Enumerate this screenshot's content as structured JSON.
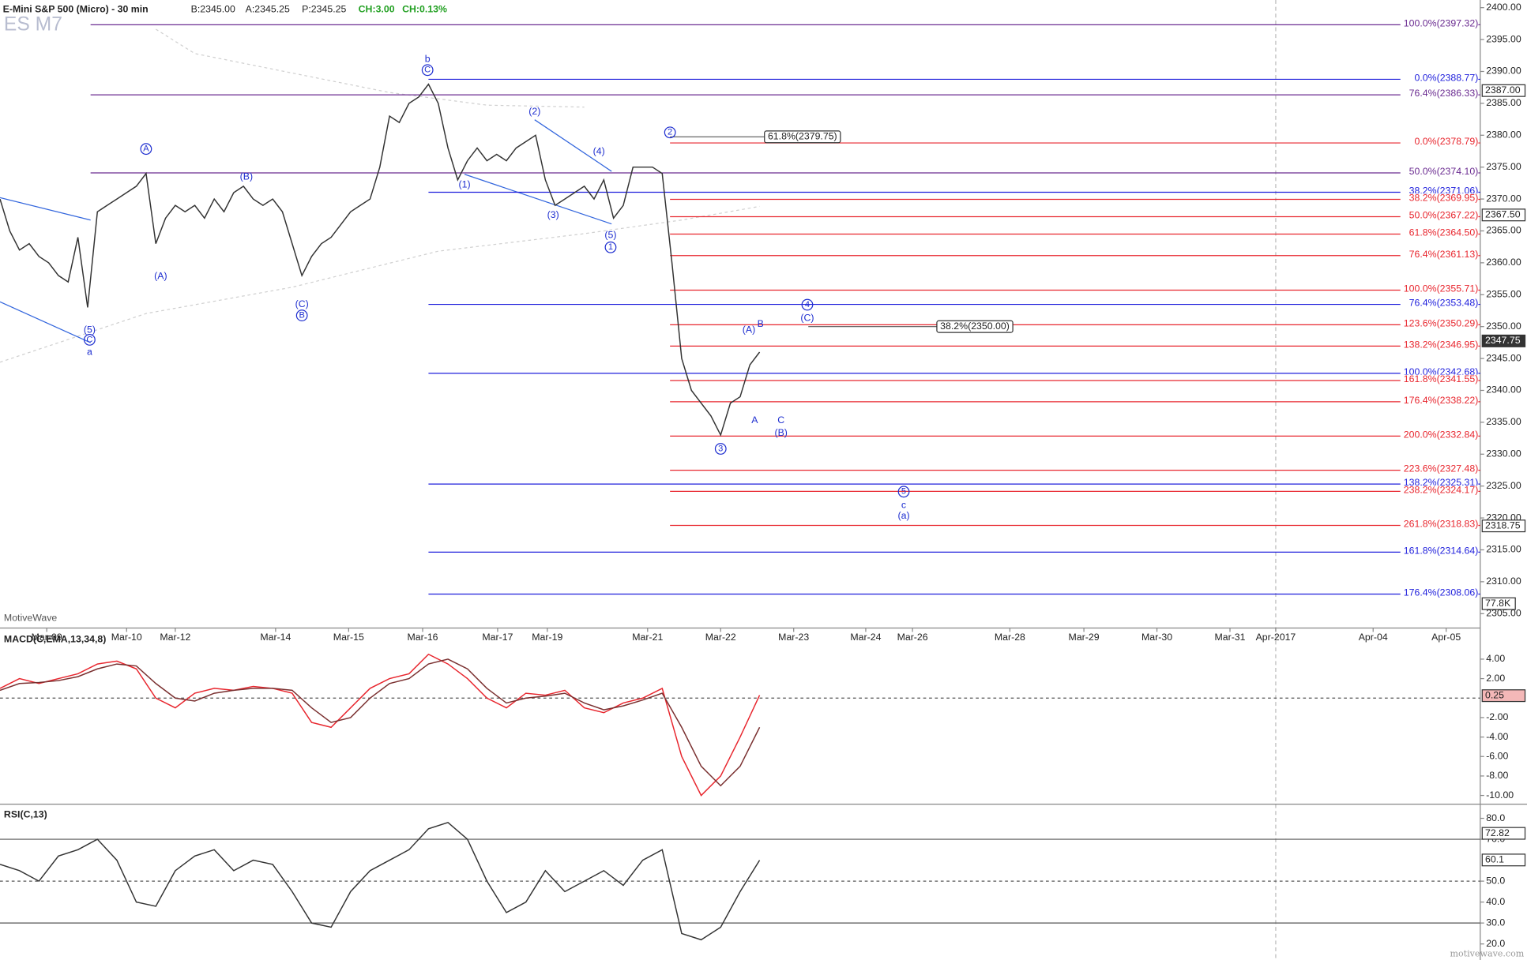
{
  "header": {
    "title": "E-Mini S&P 500 (Micro) - 30 min",
    "bid": "B:2345.00",
    "ask": "A:2345.25",
    "price": "P:2345.25",
    "change": "CH:3.00",
    "change_pct": "CH:0.13%",
    "symbol": "ES M7",
    "brand": "MotiveWave",
    "watermark": "motivewave.com"
  },
  "chart_data": [
    {
      "type": "line",
      "title": "E-Mini S&P 500 (Micro) - 30 min",
      "ylim": [
        2302.75,
        2401.2
      ],
      "yticks": [
        {
          "value": 2305,
          "label": "2305.00"
        },
        {
          "value": 2310,
          "label": "2310.00"
        },
        {
          "value": 2315,
          "label": "2315.00"
        },
        {
          "value": 2320,
          "label": "2320.00"
        },
        {
          "value": 2325,
          "label": "2325.00"
        },
        {
          "value": 2330,
          "label": "2330.00"
        },
        {
          "value": 2335,
          "label": "2335.00"
        },
        {
          "value": 2340,
          "label": "2340.00"
        },
        {
          "value": 2345,
          "label": "2345.00"
        },
        {
          "value": 2350,
          "label": "2350.00"
        },
        {
          "value": 2355,
          "label": "2355.00"
        },
        {
          "value": 2360,
          "label": "2360.00"
        },
        {
          "value": 2365,
          "label": "2365.00"
        },
        {
          "value": 2370,
          "label": "2370.00"
        },
        {
          "value": 2375,
          "label": "2375.00"
        },
        {
          "value": 2380,
          "label": "2380.00"
        },
        {
          "value": 2385,
          "label": "2385.00"
        },
        {
          "value": 2390,
          "label": "2390.00"
        },
        {
          "value": 2395,
          "label": "2395.00"
        },
        {
          "value": 2400,
          "label": "2400.00"
        }
      ],
      "xtick_labels": [
        "Mar-09",
        "Mar-10",
        "Mar-12",
        "Mar-14",
        "Mar-15",
        "Mar-16",
        "Mar-17",
        "Mar-19",
        "Mar-21",
        "Mar-22",
        "Mar-23",
        "Mar-24",
        "Mar-26",
        "Mar-28",
        "Mar-29",
        "Mar-30",
        "Mar-31",
        "Apr-2017",
        "Apr-04",
        "Apr-05"
      ],
      "series": [
        {
          "name": "Price",
          "color": "#333333",
          "values": [
            2370,
            2365,
            2362,
            2363,
            2361,
            2360,
            2358,
            2357,
            2364,
            2353,
            2368,
            2369,
            2370,
            2371,
            2372,
            2374,
            2363,
            2367,
            2369,
            2368,
            2369,
            2367,
            2370,
            2368,
            2371,
            2372,
            2370,
            2369,
            2370,
            2368,
            2363,
            2358,
            2361,
            2363,
            2364,
            2366,
            2368,
            2369,
            2370,
            2375,
            2383,
            2382,
            2385,
            2386,
            2388,
            2385,
            2378,
            2373,
            2376,
            2378,
            2376,
            2377,
            2376,
            2378,
            2379,
            2380,
            2373,
            2369,
            2370,
            2371,
            2372,
            2370,
            2373,
            2367,
            2369,
            2375,
            2375,
            2375,
            2374,
            2360,
            2345,
            2340,
            2338,
            2336,
            2333,
            2338,
            2339,
            2344,
            2346
          ]
        }
      ],
      "fib_levels": [
        {
          "label": "100.0%(2397.32)",
          "value": 2397.32,
          "color": "#6b2c91"
        },
        {
          "label": "0.0%(2388.77)",
          "value": 2388.77,
          "color": "#1f1fdc"
        },
        {
          "label": "76.4%(2386.33)",
          "value": 2386.33,
          "color": "#6b2c91"
        },
        {
          "label": "0.0%(2378.79)",
          "value": 2378.79,
          "color": "#e8262e"
        },
        {
          "label": "50.0%(2374.10)",
          "value": 2374.1,
          "color": "#6b2c91"
        },
        {
          "label": "38.2%(2371.06)",
          "value": 2371.06,
          "color": "#1f1fdc"
        },
        {
          "label": "38.2%(2369.95)",
          "value": 2369.95,
          "color": "#e8262e"
        },
        {
          "label": "50.0%(2367.22)",
          "value": 2367.22,
          "color": "#e8262e"
        },
        {
          "label": "61.8%(2364.50)",
          "value": 2364.5,
          "color": "#e8262e"
        },
        {
          "label": "76.4%(2361.13)",
          "value": 2361.13,
          "color": "#e8262e"
        },
        {
          "label": "100.0%(2355.71)",
          "value": 2355.71,
          "color": "#e8262e"
        },
        {
          "label": "76.4%(2353.48)",
          "value": 2353.48,
          "color": "#1f1fdc"
        },
        {
          "label": "123.6%(2350.29)",
          "value": 2350.29,
          "color": "#e8262e"
        },
        {
          "label": "138.2%(2346.95)",
          "value": 2346.95,
          "color": "#e8262e"
        },
        {
          "label": "100.0%(2342.68)",
          "value": 2342.68,
          "color": "#1f1fdc"
        },
        {
          "label": "161.8%(2341.55)",
          "value": 2341.55,
          "color": "#e8262e"
        },
        {
          "label": "176.4%(2338.22)",
          "value": 2338.22,
          "color": "#e8262e"
        },
        {
          "label": "200.0%(2332.84)",
          "value": 2332.84,
          "color": "#e8262e"
        },
        {
          "label": "223.6%(2327.48)",
          "value": 2327.48,
          "color": "#e8262e"
        },
        {
          "label": "138.2%(2325.31)",
          "value": 2325.31,
          "color": "#1f1fdc"
        },
        {
          "label": "238.2%(2324.17)",
          "value": 2324.17,
          "color": "#e8262e"
        },
        {
          "label": "261.8%(2318.83)",
          "value": 2318.83,
          "color": "#e8262e"
        },
        {
          "label": "161.8%(2314.64)",
          "value": 2314.64,
          "color": "#1f1fdc"
        },
        {
          "label": "176.4%(2308.06)",
          "value": 2308.06,
          "color": "#1f1fdc"
        }
      ],
      "targets": [
        {
          "label": "61.8%(2379.75)",
          "value": 2379.75
        },
        {
          "label": "38.2%(2350.00)",
          "value": 2350.0
        }
      ],
      "markers": [
        {
          "label": "2387.00",
          "value": 2387.0,
          "dark": false
        },
        {
          "label": "2367.50",
          "value": 2367.5,
          "dark": false
        },
        {
          "label": "2347.75",
          "value": 2347.75,
          "dark": true
        },
        {
          "label": "2318.75",
          "value": 2318.75,
          "dark": false
        }
      ],
      "annotations": [
        {
          "text": "b",
          "circled": false
        },
        {
          "text": "C",
          "circled": true
        },
        {
          "text": "A",
          "circled": true
        },
        {
          "text": "(A)",
          "circled": false
        },
        {
          "text": "(B)",
          "circled": false
        },
        {
          "text": "(C)",
          "circled": false
        },
        {
          "text": "B",
          "circled": true
        },
        {
          "text": "(5)",
          "circled": false
        },
        {
          "text": "C",
          "circled": true
        },
        {
          "text": "a",
          "circled": false
        },
        {
          "text": "(1)",
          "circled": false
        },
        {
          "text": "(2)",
          "circled": false
        },
        {
          "text": "(3)",
          "circled": false
        },
        {
          "text": "(4)",
          "circled": false
        },
        {
          "text": "(5)",
          "circled": false
        },
        {
          "text": "1",
          "circled": true
        },
        {
          "text": "2",
          "circled": true
        },
        {
          "text": "3",
          "circled": true
        },
        {
          "text": "4",
          "circled": true
        },
        {
          "text": "(C)",
          "circled": false
        },
        {
          "text": "(A)",
          "circled": false
        },
        {
          "text": "B",
          "circled": false
        },
        {
          "text": "A",
          "circled": false
        },
        {
          "text": "C",
          "circled": false
        },
        {
          "text": "(B)",
          "circled": false
        },
        {
          "text": "5",
          "circled": true
        },
        {
          "text": "c",
          "circled": false
        },
        {
          "text": "(a)",
          "circled": false
        }
      ],
      "volume_label": "77.8K"
    },
    {
      "type": "line",
      "title": "MACD(C,EMA,13,34,8)",
      "ylim": [
        -10.8,
        6.9
      ],
      "yticks": [
        {
          "value": 4,
          "label": "4.00"
        },
        {
          "value": 2,
          "label": "2.00"
        },
        {
          "value": -2,
          "label": "-2.00"
        },
        {
          "value": -4,
          "label": "-4.00"
        },
        {
          "value": -6,
          "label": "-6.00"
        },
        {
          "value": -8,
          "label": "-8.00"
        },
        {
          "value": -10,
          "label": "-10.00"
        }
      ],
      "levels": [
        0
      ],
      "series": [
        {
          "name": "MACD",
          "color": "#e8262e",
          "values": [
            1,
            2,
            1.5,
            2,
            2.5,
            3.5,
            3.8,
            3,
            0,
            -1,
            0.5,
            1,
            0.8,
            1.2,
            1,
            0.5,
            -2.5,
            -3,
            -1,
            1,
            2,
            2.5,
            4.5,
            3.5,
            2,
            0,
            -1,
            0.5,
            0.3,
            0.8,
            -1,
            -1.5,
            -0.5,
            0,
            1,
            -6,
            -10,
            -8,
            -4,
            0.3
          ]
        },
        {
          "name": "Signal",
          "color": "#7a3030",
          "values": [
            0.8,
            1.5,
            1.6,
            1.8,
            2.2,
            3,
            3.5,
            3.3,
            1.5,
            0,
            -0.3,
            0.5,
            0.8,
            1,
            1,
            0.8,
            -1,
            -2.5,
            -2,
            0,
            1.5,
            2,
            3.5,
            4,
            3,
            1,
            -0.5,
            0,
            0.2,
            0.5,
            -0.5,
            -1.2,
            -0.8,
            -0.2,
            0.5,
            -3,
            -7,
            -9,
            -7,
            -3
          ]
        }
      ],
      "markers": [
        {
          "label": "0.25",
          "value": 0.25,
          "dark": false
        }
      ]
    },
    {
      "type": "line",
      "title": "RSI(C,13)",
      "ylim": [
        14.2,
        85.8
      ],
      "yticks": [
        {
          "value": 20,
          "label": "20.0"
        },
        {
          "value": 30,
          "label": "30.0"
        },
        {
          "value": 40,
          "label": "40.0"
        },
        {
          "value": 50,
          "label": "50.0"
        },
        {
          "value": 70,
          "label": "70.0"
        },
        {
          "value": 80,
          "label": "80.0"
        }
      ],
      "levels": [
        70,
        50,
        30
      ],
      "series": [
        {
          "name": "RSI",
          "color": "#333333",
          "values": [
            58,
            55,
            50,
            62,
            65,
            70,
            60,
            40,
            38,
            55,
            62,
            65,
            55,
            60,
            58,
            45,
            30,
            28,
            45,
            55,
            60,
            65,
            75,
            78,
            70,
            50,
            35,
            40,
            55,
            45,
            50,
            55,
            48,
            60,
            65,
            25,
            22,
            28,
            45,
            60
          ]
        }
      ],
      "markers": [
        {
          "label": "72.82",
          "value": 72.82,
          "dark": false
        },
        {
          "label": "60.1",
          "value": 60.1,
          "dark": false
        }
      ]
    }
  ]
}
